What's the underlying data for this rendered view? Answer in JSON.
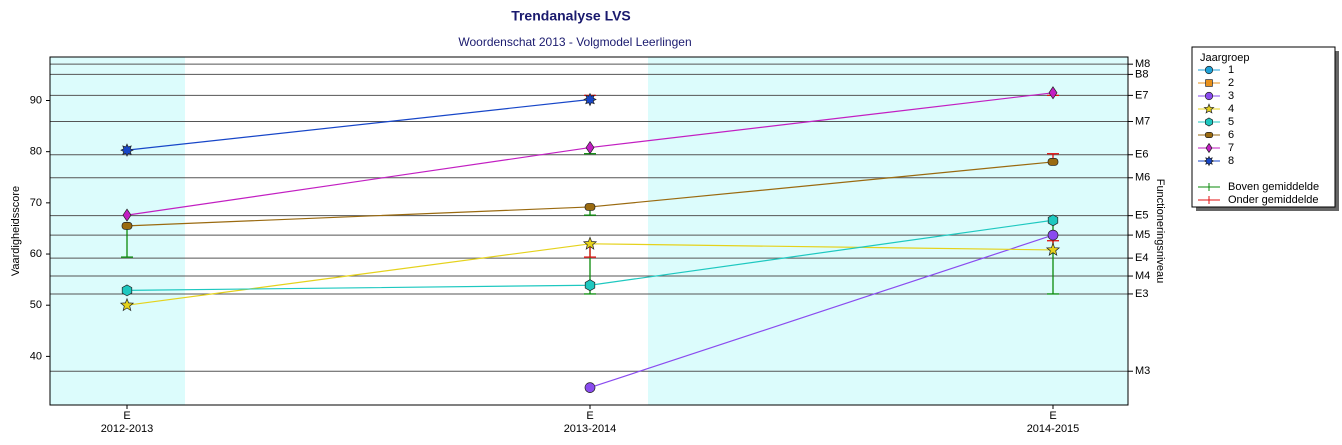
{
  "chart_data": {
    "type": "line",
    "title": "Trendanalyse LVS",
    "subtitle": "Woordenschat 2013 - Volgmodel Leerlingen",
    "y_label": "Vaardigheidsscore",
    "y2_label": "Functioneringsniveau",
    "legend_title": "Jaargroep",
    "legend_position": "right",
    "category_top_labels": [
      "E",
      "E",
      "E"
    ],
    "categories": [
      "2012-2013",
      "2013-2014",
      "2014-2015"
    ],
    "ylim": [
      30.5,
      98.5
    ],
    "yticks": [
      40,
      50,
      60,
      70,
      80,
      90
    ],
    "y2lim": [
      30.5,
      98.5
    ],
    "y2ticks": [
      {
        "value": 37.1,
        "label": "M3"
      },
      {
        "value": 52.2,
        "label": "E3"
      },
      {
        "value": 55.7,
        "label": "M4"
      },
      {
        "value": 59.2,
        "label": "E4"
      },
      {
        "value": 63.7,
        "label": "M5"
      },
      {
        "value": 67.5,
        "label": "E5"
      },
      {
        "value": 74.9,
        "label": "M6"
      },
      {
        "value": 79.4,
        "label": "E6"
      },
      {
        "value": 85.9,
        "label": "M7"
      },
      {
        "value": 91.0,
        "label": "E7"
      },
      {
        "value": 95.1,
        "label": "B8"
      },
      {
        "value": 97.1,
        "label": "M8"
      }
    ],
    "grid": true,
    "series": [
      {
        "name": "1",
        "color": "#1fa2d8",
        "marker": "circle",
        "values": [
          null,
          null,
          null
        ]
      },
      {
        "name": "2",
        "color": "#e8901a",
        "marker": "square",
        "values": [
          null,
          null,
          null
        ]
      },
      {
        "name": "3",
        "color": "#8a4bef",
        "marker": "circle",
        "values": [
          null,
          33.9,
          63.7
        ]
      },
      {
        "name": "4",
        "color": "#e5d21c",
        "marker": "star",
        "values": [
          50.0,
          62.0,
          60.8
        ]
      },
      {
        "name": "5",
        "color": "#1ec8c0",
        "marker": "hexagon",
        "values": [
          52.9,
          53.9,
          66.6
        ]
      },
      {
        "name": "6",
        "color": "#9a6a10",
        "marker": "pill",
        "values": [
          65.5,
          69.2,
          78.0
        ]
      },
      {
        "name": "7",
        "color": "#c21fc2",
        "marker": "diamond",
        "values": [
          67.6,
          80.8,
          91.5
        ]
      },
      {
        "name": "8",
        "color": "#1746c8",
        "marker": "star8",
        "values": [
          80.3,
          90.2,
          null
        ]
      }
    ],
    "error_bars": [
      {
        "name": "Boven gemiddelde",
        "color": "#0a8a0a",
        "bars": [
          {
            "x": "2012-2013",
            "from": 65.5,
            "to": 59.4
          },
          {
            "x": "2013-2014",
            "from": 80.8,
            "to": 79.6
          },
          {
            "x": "2013-2014",
            "from": 69.2,
            "to": 67.6
          },
          {
            "x": "2013-2014",
            "from": 62.0,
            "to": 52.2
          },
          {
            "x": "2014-2015",
            "from": 66.6,
            "to": 52.2
          }
        ]
      },
      {
        "name": "Onder gemiddelde",
        "color": "#e01010",
        "bars": [
          {
            "x": "2013-2014",
            "from": 90.2,
            "to": 91.0
          },
          {
            "x": "2013-2014",
            "from": 62.0,
            "to": 59.4
          },
          {
            "x": "2014-2015",
            "from": 78.0,
            "to": 79.6
          },
          {
            "x": "2014-2015",
            "from": 91.5,
            "to": 91.0
          },
          {
            "x": "2014-2015",
            "from": 60.8,
            "to": 62.6
          }
        ]
      }
    ]
  }
}
